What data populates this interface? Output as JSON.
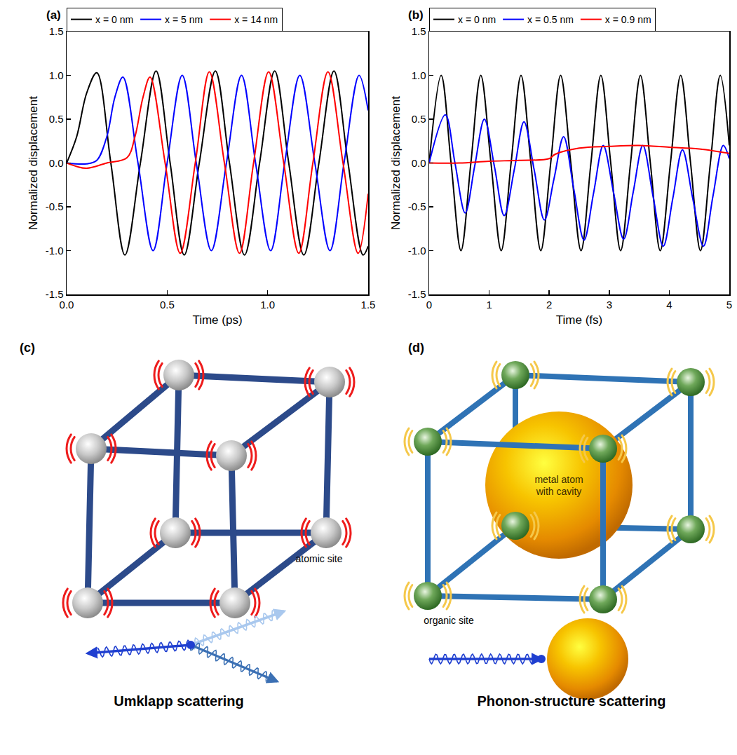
{
  "chart_data": [
    {
      "type": "line",
      "label": "(a)",
      "x_label": "Time (ps)",
      "y_label": "Normalized displacement",
      "xlim": [
        0,
        1.5
      ],
      "xticks": [
        {
          "value": 0,
          "label": "0.0"
        },
        0.5,
        {
          "value": 1,
          "label": "1.0"
        },
        1.5
      ],
      "ylim": [
        -1.5,
        1.5
      ],
      "yticks": [
        -1.5,
        {
          "value": -1,
          "label": "-1.0"
        },
        -0.5,
        {
          "value": 0,
          "label": "0.0"
        },
        0.5,
        {
          "value": 1,
          "label": "1.0"
        },
        1.5
      ],
      "grid": false,
      "legend": "top",
      "series": [
        {
          "name": "x = 0 nm",
          "color": "#000000",
          "x": [
            0,
            0.05,
            0.1,
            0.15,
            0.22,
            0.29,
            0.367,
            0.445,
            0.515,
            0.585,
            0.66,
            0.74,
            0.81,
            0.885,
            0.96,
            1.035,
            1.105,
            1.18,
            1.255,
            1.33,
            1.4,
            1.475,
            1.5
          ],
          "values": [
            0,
            0.3,
            0.8,
            1.03,
            0,
            -1.05,
            0,
            1.05,
            0,
            -1.05,
            0,
            1.05,
            0,
            -1.05,
            0,
            1.05,
            0,
            -1.05,
            0,
            1.05,
            0,
            -1.05,
            -0.95
          ]
        },
        {
          "name": "x = 5 nm",
          "color": "#0000ff",
          "x": [
            0,
            0.1,
            0.15,
            0.2,
            0.24,
            0.28,
            0.355,
            0.43,
            0.5,
            0.575,
            0.645,
            0.72,
            0.795,
            0.87,
            0.94,
            1.015,
            1.085,
            1.16,
            1.235,
            1.31,
            1.38,
            1.455,
            1.5
          ],
          "values": [
            0,
            -0.01,
            0.03,
            0.3,
            0.75,
            0.98,
            0,
            -1.0,
            0,
            1.0,
            0,
            -1.0,
            0,
            1.0,
            0,
            -1.0,
            0,
            1.0,
            0,
            -1.0,
            0,
            1.0,
            0.6
          ]
        },
        {
          "name": "x = 14 nm",
          "color": "#ff0000",
          "x": [
            0,
            0.05,
            0.1,
            0.2,
            0.3,
            0.34,
            0.38,
            0.415,
            0.49,
            0.565,
            0.64,
            0.71,
            0.785,
            0.86,
            0.93,
            1.005,
            1.08,
            1.155,
            1.225,
            1.3,
            1.375,
            1.45,
            1.5
          ],
          "values": [
            0,
            -0.04,
            -0.06,
            0,
            0.06,
            0.3,
            0.75,
            0.98,
            0,
            -1.03,
            0,
            1.04,
            0,
            -1.03,
            0,
            1.04,
            0,
            -1.03,
            0,
            1.04,
            0,
            -1.03,
            -0.35
          ]
        }
      ]
    },
    {
      "type": "line",
      "label": "(b)",
      "x_label": "Time (fs)",
      "y_label": "Normalized displacement",
      "xlim": [
        0,
        5
      ],
      "xticks": [
        0,
        1,
        2,
        3,
        4,
        5
      ],
      "ylim": [
        -1.5,
        1.5
      ],
      "yticks": [
        -1.5,
        {
          "value": -1,
          "label": "-1.0"
        },
        -0.5,
        {
          "value": 0,
          "label": "0.0"
        },
        0.5,
        {
          "value": 1,
          "label": "1.0"
        },
        1.5
      ],
      "grid": false,
      "legend": "top",
      "series": [
        {
          "name": "x = 0 nm",
          "color": "#000000",
          "x": [
            0,
            0.2,
            0.365,
            0.53,
            0.695,
            0.86,
            1.03,
            1.2,
            1.365,
            1.53,
            1.695,
            1.86,
            2.025,
            2.19,
            2.36,
            2.53,
            2.695,
            2.86,
            3.025,
            3.19,
            3.355,
            3.52,
            3.685,
            3.85,
            4.02,
            4.19,
            4.355,
            4.52,
            4.685,
            4.85,
            5
          ],
          "values": [
            0,
            1,
            0,
            -1,
            0,
            1,
            0,
            -1,
            0,
            1,
            0,
            -1,
            0,
            1,
            0,
            -1,
            0,
            1,
            0,
            -1,
            0,
            1,
            0,
            -1,
            0,
            1,
            0,
            -1,
            0,
            1,
            0.2
          ]
        },
        {
          "name": "x = 0.5 nm",
          "color": "#0000ff",
          "x": [
            0,
            0.27,
            0.43,
            0.6,
            0.76,
            0.92,
            1.09,
            1.25,
            1.42,
            1.58,
            1.75,
            1.92,
            2.08,
            2.24,
            2.41,
            2.58,
            2.74,
            2.9,
            3.07,
            3.24,
            3.4,
            3.56,
            3.73,
            3.9,
            4.06,
            4.22,
            4.39,
            4.57,
            4.73,
            4.9,
            5
          ],
          "values": [
            0,
            0.55,
            0,
            -0.57,
            -0.03,
            0.5,
            -0.05,
            -0.6,
            -0.07,
            0.47,
            -0.08,
            -0.65,
            -0.18,
            0.3,
            -0.3,
            -0.88,
            -0.34,
            0.2,
            -0.33,
            -0.87,
            -0.33,
            0.2,
            -0.38,
            -0.95,
            -0.4,
            0.15,
            -0.4,
            -0.95,
            -0.37,
            0.2,
            0.05
          ]
        },
        {
          "name": "x = 0.9 nm",
          "color": "#ff0000",
          "x": [
            0,
            0.5,
            1,
            1.5,
            2,
            2.1,
            2.5,
            3,
            3.5,
            4,
            4.5,
            5
          ],
          "values": [
            0,
            0,
            0.02,
            0.03,
            0.05,
            0.1,
            0.17,
            0.19,
            0.2,
            0.18,
            0.16,
            0.11
          ]
        }
      ]
    }
  ],
  "diagrams": [
    {
      "label": "(c)",
      "site_label": "atomic site",
      "caption": "Umklapp scattering"
    },
    {
      "label": "(d)",
      "center_label": "metal atom with cavity",
      "site_label": "organic site",
      "caption": "Phonon-structure scattering"
    }
  ]
}
